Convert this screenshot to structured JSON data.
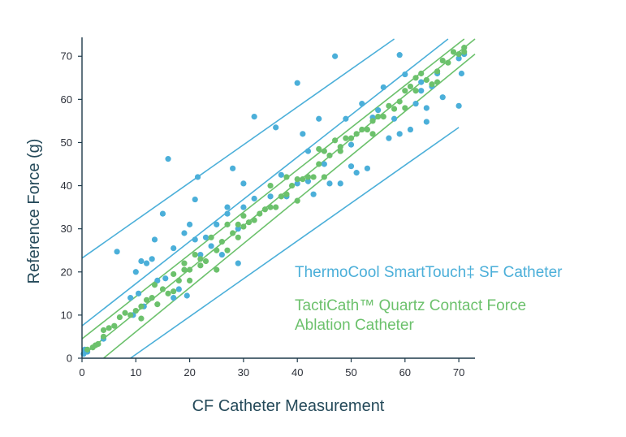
{
  "chart_data": {
    "type": "scatter",
    "title": "",
    "xlabel": "CF Catheter Measurement",
    "ylabel": "Reference Force (g)",
    "xlim": [
      0,
      73
    ],
    "ylim": [
      0,
      74
    ],
    "xticks": [
      0,
      10,
      20,
      30,
      40,
      50,
      60,
      70
    ],
    "yticks": [
      0,
      10,
      20,
      30,
      40,
      50,
      60,
      70
    ],
    "grid": false,
    "legend_position": "right",
    "series": [
      {
        "name": "ThermoCool SmartTouch‡ SF Catheter",
        "color": "#4bafd9",
        "points": [
          [
            0.3,
            1.0
          ],
          [
            0.5,
            2.0
          ],
          [
            1,
            1.5
          ],
          [
            4,
            4.5
          ],
          [
            6.5,
            24.7
          ],
          [
            9,
            14
          ],
          [
            9.5,
            10
          ],
          [
            10,
            20
          ],
          [
            10.5,
            15
          ],
          [
            11,
            22.5
          ],
          [
            11.5,
            12
          ],
          [
            12,
            22
          ],
          [
            13,
            23
          ],
          [
            13.5,
            27.5
          ],
          [
            14,
            18
          ],
          [
            15,
            33.5
          ],
          [
            15.5,
            18.5
          ],
          [
            16,
            46.2
          ],
          [
            17,
            25.5
          ],
          [
            17,
            14
          ],
          [
            18,
            16
          ],
          [
            19,
            29
          ],
          [
            19.5,
            14.5
          ],
          [
            20,
            31
          ],
          [
            21,
            36.8
          ],
          [
            21,
            27.5
          ],
          [
            21.5,
            42
          ],
          [
            22,
            24
          ],
          [
            23,
            28
          ],
          [
            24,
            26
          ],
          [
            25,
            31
          ],
          [
            26,
            24
          ],
          [
            27,
            33.5
          ],
          [
            27,
            35
          ],
          [
            28,
            44
          ],
          [
            29,
            22
          ],
          [
            29,
            30
          ],
          [
            30,
            40.5
          ],
          [
            30,
            35
          ],
          [
            32,
            56
          ],
          [
            32,
            37
          ],
          [
            35,
            37.5
          ],
          [
            36,
            53.5
          ],
          [
            37,
            42.5
          ],
          [
            38,
            37.5
          ],
          [
            40,
            63.8
          ],
          [
            40,
            40.5
          ],
          [
            41,
            52
          ],
          [
            42,
            48
          ],
          [
            42,
            41
          ],
          [
            43,
            38
          ],
          [
            44,
            55.5
          ],
          [
            45,
            45
          ],
          [
            46,
            40.5
          ],
          [
            47,
            70
          ],
          [
            48,
            40.5
          ],
          [
            49,
            55.5
          ],
          [
            50,
            44.5
          ],
          [
            50,
            49.5
          ],
          [
            51,
            43
          ],
          [
            52,
            59
          ],
          [
            53,
            44
          ],
          [
            54,
            55.8
          ],
          [
            55,
            57.5
          ],
          [
            56,
            62.8
          ],
          [
            57,
            51
          ],
          [
            58,
            55.5
          ],
          [
            59,
            70.3
          ],
          [
            59,
            52
          ],
          [
            60,
            65.8
          ],
          [
            61,
            53
          ],
          [
            62,
            59
          ],
          [
            63,
            64
          ],
          [
            63,
            62
          ],
          [
            64,
            58
          ],
          [
            64,
            54.8
          ],
          [
            65,
            63
          ],
          [
            66,
            66
          ],
          [
            67,
            60.5
          ],
          [
            70,
            69.5
          ],
          [
            70,
            58.5
          ],
          [
            70.5,
            66
          ],
          [
            71,
            70.5
          ]
        ]
      },
      {
        "name": "TactiCath™ Quartz Contact Force Ablation Catheter",
        "color": "#6cc16c",
        "points": [
          [
            1,
            2
          ],
          [
            2,
            2.5
          ],
          [
            2.5,
            3
          ],
          [
            3,
            3.3
          ],
          [
            4,
            5
          ],
          [
            4,
            6.5
          ],
          [
            5,
            7
          ],
          [
            6,
            7.5
          ],
          [
            7,
            9.5
          ],
          [
            8,
            10.5
          ],
          [
            9,
            10
          ],
          [
            10,
            11
          ],
          [
            11,
            9.2
          ],
          [
            11,
            12
          ],
          [
            12,
            13.5
          ],
          [
            13,
            14
          ],
          [
            13.5,
            17
          ],
          [
            14,
            12.5
          ],
          [
            15,
            16
          ],
          [
            16,
            15
          ],
          [
            17,
            15.5
          ],
          [
            17,
            19.5
          ],
          [
            18,
            18
          ],
          [
            19,
            20.5
          ],
          [
            19,
            22
          ],
          [
            20,
            20.5
          ],
          [
            20,
            18
          ],
          [
            21,
            24
          ],
          [
            22,
            21.5
          ],
          [
            22,
            23
          ],
          [
            23,
            22.5
          ],
          [
            24,
            28
          ],
          [
            25,
            25
          ],
          [
            25,
            20.5
          ],
          [
            26,
            27
          ],
          [
            27,
            25
          ],
          [
            27,
            31
          ],
          [
            28,
            29
          ],
          [
            29,
            28
          ],
          [
            29,
            31
          ],
          [
            30,
            30.5
          ],
          [
            30,
            33
          ],
          [
            31,
            31.5
          ],
          [
            32,
            32
          ],
          [
            33,
            33.5
          ],
          [
            34,
            34.5
          ],
          [
            35,
            35
          ],
          [
            35,
            40
          ],
          [
            36,
            35
          ],
          [
            37,
            37.5
          ],
          [
            38,
            38
          ],
          [
            38,
            42
          ],
          [
            39,
            40
          ],
          [
            40,
            36.5
          ],
          [
            40,
            41.5
          ],
          [
            41,
            41.5
          ],
          [
            42,
            42
          ],
          [
            43,
            42
          ],
          [
            44,
            45
          ],
          [
            44,
            48.5
          ],
          [
            45,
            42
          ],
          [
            45,
            48
          ],
          [
            46,
            47
          ],
          [
            47,
            50.5
          ],
          [
            48,
            48
          ],
          [
            48,
            49
          ],
          [
            49,
            51
          ],
          [
            50,
            51
          ],
          [
            51,
            52
          ],
          [
            52,
            53
          ],
          [
            53,
            53
          ],
          [
            54,
            55
          ],
          [
            54,
            52
          ],
          [
            55,
            56
          ],
          [
            56,
            56
          ],
          [
            57,
            58.5
          ],
          [
            58,
            57.8
          ],
          [
            59,
            59.5
          ],
          [
            60,
            62
          ],
          [
            60,
            58
          ],
          [
            61,
            63
          ],
          [
            62,
            62
          ],
          [
            62,
            65
          ],
          [
            63,
            66
          ],
          [
            64,
            64.5
          ],
          [
            65,
            63.5
          ],
          [
            66,
            66.5
          ],
          [
            66,
            64
          ],
          [
            67,
            69
          ],
          [
            68,
            68.5
          ],
          [
            69,
            71
          ],
          [
            70,
            70.5
          ],
          [
            71,
            72
          ],
          [
            71,
            71
          ]
        ]
      }
    ],
    "lines": [
      {
        "series": 0,
        "role": "upper-bound",
        "from": [
          0,
          23.2
        ],
        "to": [
          58,
          74
        ]
      },
      {
        "series": 0,
        "role": "fit",
        "from": [
          0,
          7.5
        ],
        "to": [
          68,
          74
        ]
      },
      {
        "series": 0,
        "role": "lower-bound",
        "from": [
          9,
          0
        ],
        "to": [
          70,
          53.5
        ]
      },
      {
        "series": 1,
        "role": "upper-bound",
        "from": [
          0,
          4.5
        ],
        "to": [
          71,
          74
        ]
      },
      {
        "series": 1,
        "role": "fit",
        "from": [
          0,
          0.5
        ],
        "to": [
          73,
          74
        ]
      },
      {
        "series": 1,
        "role": "lower-bound",
        "from": [
          4,
          0
        ],
        "to": [
          73,
          70.5
        ]
      }
    ]
  },
  "legend": {
    "items": [
      {
        "lines": [
          "ThermoCool SmartTouch‡ SF Catheter"
        ],
        "color": "#4bafd9"
      },
      {
        "lines": [
          "TactiCath™ Quartz Contact Force",
          "Ablation Catheter"
        ],
        "color": "#6cc16c"
      }
    ]
  },
  "colors": {
    "axis": "#1e3a4a",
    "text": "#254a5a"
  }
}
